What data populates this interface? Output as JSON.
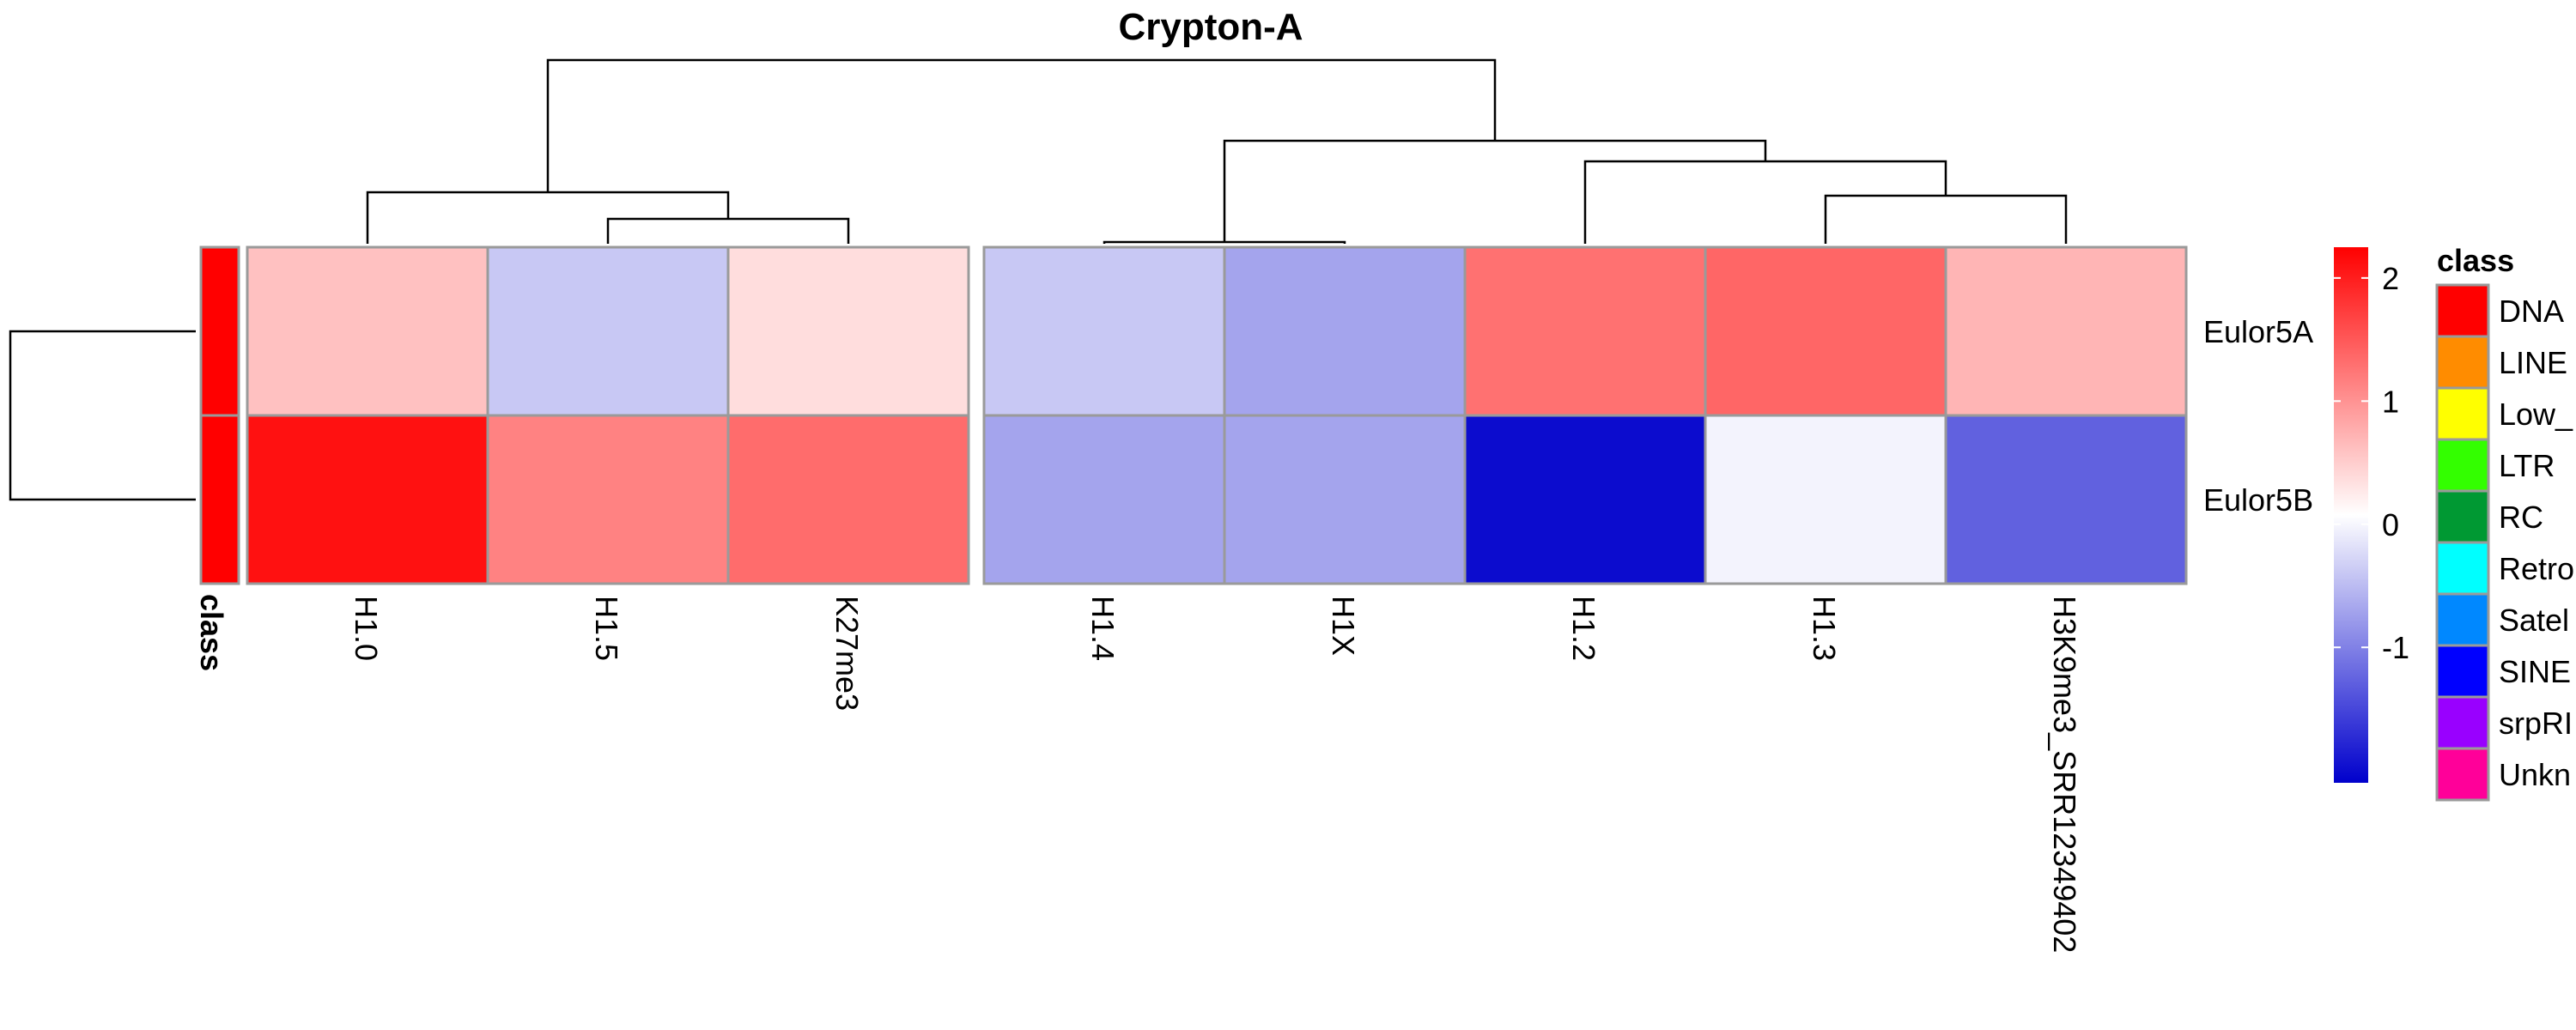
{
  "chart_data": {
    "type": "heatmap",
    "title": "Crypton-A",
    "columns": [
      "H1.0",
      "H1.5",
      "K27me3",
      "H1.4",
      "H1X",
      "H1.2",
      "H1.3",
      "H3K9me3_SRR12349402"
    ],
    "rows": [
      "Eulor5A",
      "Eulor5B"
    ],
    "values": [
      [
        0.55,
        -0.45,
        0.3,
        -0.45,
        -0.75,
        1.25,
        1.35,
        0.65
      ],
      [
        2.1,
        1.1,
        1.3,
        -0.75,
        -0.75,
        -2.0,
        -0.1,
        -1.3
      ]
    ],
    "row_annotation": {
      "label": "class",
      "values": [
        "DNA",
        "DNA"
      ]
    },
    "color_scale": {
      "low": "#0000cc",
      "mid": "#ffffff",
      "high": "#ff0000",
      "range": [
        -2.1,
        2.25
      ],
      "ticks": [
        2,
        1,
        0,
        -1
      ],
      "tick_labels": [
        "2",
        "1",
        "0",
        "-1"
      ]
    },
    "column_gap_after": 3,
    "legend": {
      "title": "class",
      "items": [
        {
          "label": "DNA",
          "color": "#ff0000"
        },
        {
          "label": "LINE",
          "color": "#ff8c00"
        },
        {
          "label": "Low_",
          "color": "#ffff00"
        },
        {
          "label": "LTR",
          "color": "#33ff00"
        },
        {
          "label": "RC",
          "color": "#009933"
        },
        {
          "label": "Retro",
          "color": "#00ffff"
        },
        {
          "label": "Satel",
          "color": "#0088ff"
        },
        {
          "label": "SINE",
          "color": "#0000ff"
        },
        {
          "label": "srpRI",
          "color": "#9900ff"
        },
        {
          "label": "Unkn",
          "color": "#ff0099"
        }
      ]
    }
  }
}
